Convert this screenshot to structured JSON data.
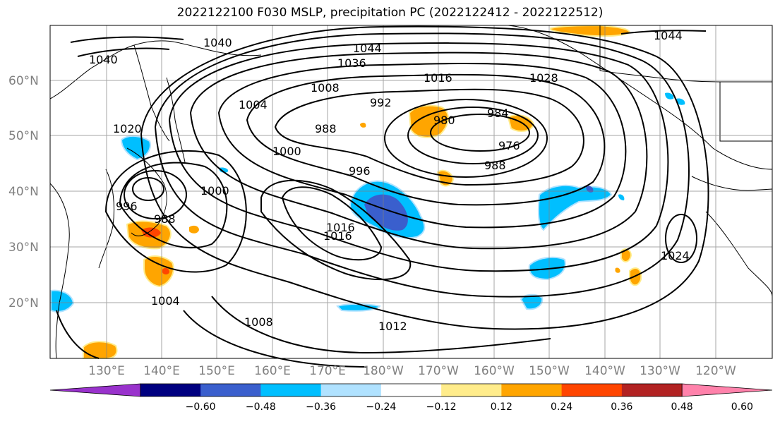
{
  "title": "2022122100 F030 MSLP, precipitation PC (2022122412 - 2022122512)",
  "lat_labels": [
    "60°N",
    "50°N",
    "40°N",
    "30°N",
    "20°N"
  ],
  "lon_labels": [
    "130°E",
    "140°E",
    "150°E",
    "160°E",
    "170°E",
    "180°W",
    "170°W",
    "160°W",
    "150°W",
    "140°W",
    "130°W",
    "120°W"
  ],
  "colorbar": {
    "colors": [
      "#9932cc",
      "#000080",
      "#3a5fcd",
      "#00bfff",
      "#b0e2ff",
      "#ffffff",
      "#ffec8b",
      "#ffa500",
      "#ff4500",
      "#b22222",
      "#ff82ab"
    ],
    "labels": [
      "−0.60",
      "−0.48",
      "−0.36",
      "−0.24",
      "−0.12",
      "0.12",
      "0.24",
      "0.36",
      "0.48",
      "0.60"
    ]
  },
  "contour_labels": [
    "1040",
    "1040",
    "1044",
    "1036",
    "1016",
    "1028",
    "1008",
    "1004",
    "992",
    "988",
    "980",
    "984",
    "976",
    "988",
    "1000",
    "996",
    "1020",
    "1016",
    "1000",
    "996",
    "988",
    "1016",
    "1024",
    "1004",
    "1008",
    "1012",
    "1044"
  ]
}
